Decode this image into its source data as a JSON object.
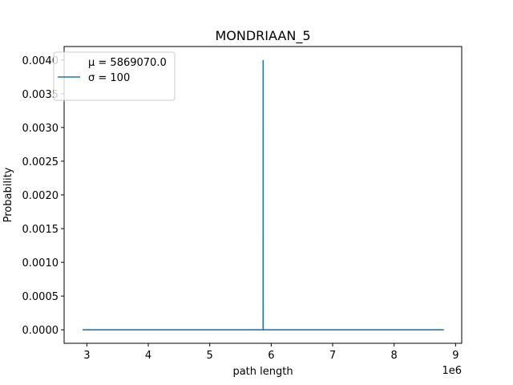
{
  "chart_data": {
    "type": "line",
    "title": "MONDRIAAN_5",
    "xlabel": "path length",
    "ylabel": "Probability",
    "x_offset_label": "1e6",
    "xlim": [
      2.63,
      9.1
    ],
    "ylim": [
      -0.0002,
      0.0042
    ],
    "x_ticks": [
      3,
      4,
      5,
      6,
      7,
      8,
      9
    ],
    "x_tick_labels": [
      "3",
      "4",
      "5",
      "6",
      "7",
      "8",
      "9"
    ],
    "y_ticks": [
      0,
      0.0005,
      0.001,
      0.0015,
      0.002,
      0.0025,
      0.003,
      0.0035,
      0.004
    ],
    "y_tick_labels": [
      "0.0000",
      "0.0005",
      "0.0010",
      "0.0015",
      "0.0020",
      "0.0025",
      "0.0030",
      "0.0035",
      "0.0040"
    ],
    "grid": false,
    "legend_position": "upper-left",
    "legend": {
      "handle_color": "#1f77b4",
      "mu_text": "μ = 5869070.0",
      "sigma_text": "σ = 100"
    },
    "series": [
      {
        "color": "#1f77b4",
        "x": [
          2.93,
          5.8685,
          5.869,
          5.8695,
          8.81
        ],
        "y": [
          0,
          0,
          0.004,
          0,
          0
        ]
      }
    ]
  }
}
